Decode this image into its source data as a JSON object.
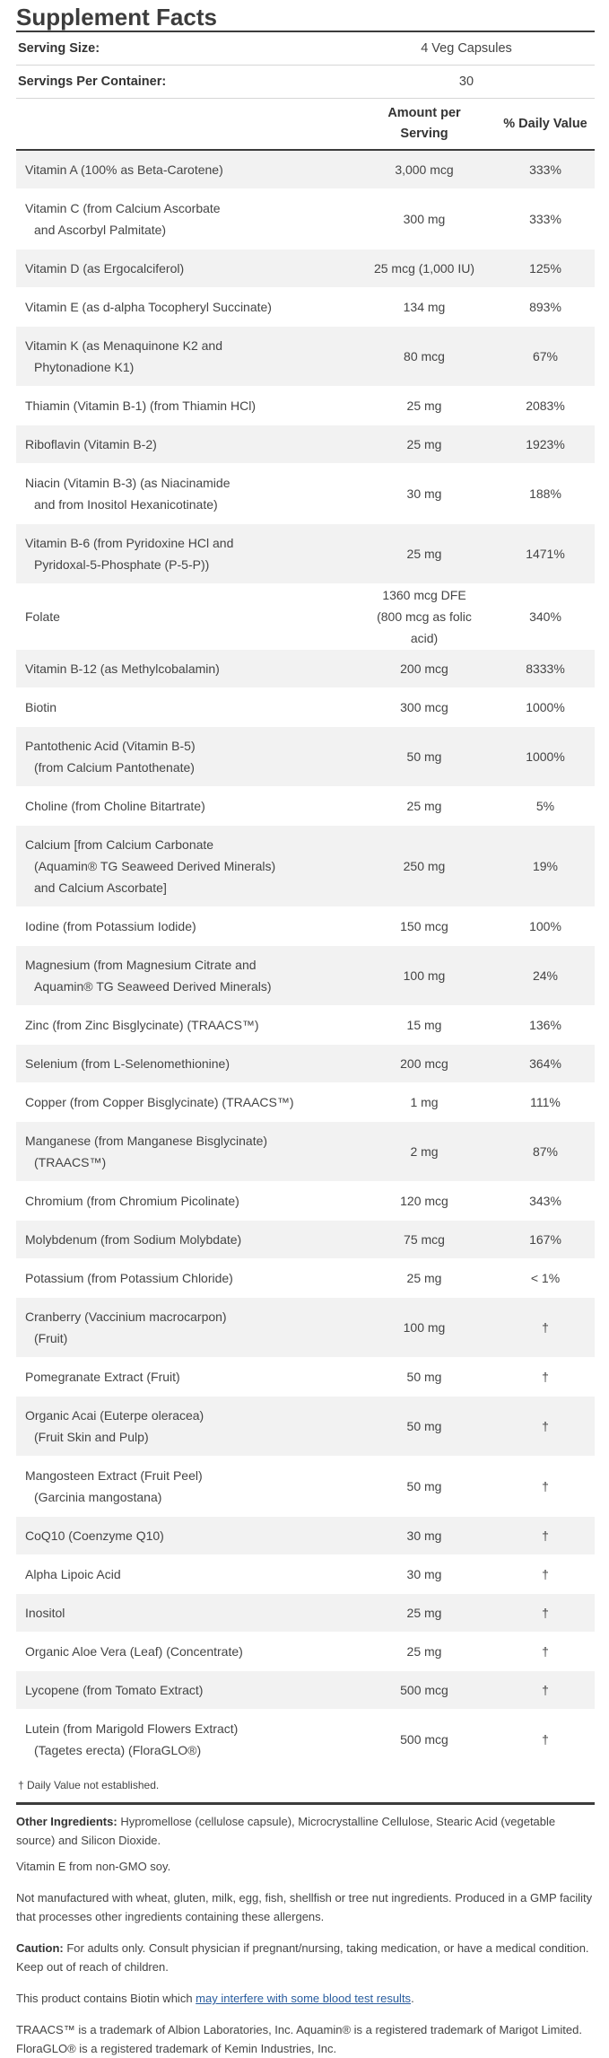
{
  "title": "Supplement Facts",
  "serving": {
    "size_label": "Serving Size:",
    "size_value": "4 Veg Capsules",
    "per_container_label": "Servings Per Container:",
    "per_container_value": "30"
  },
  "header": {
    "amount_line1": "Amount per",
    "amount_line2": "Serving",
    "dv": "% Daily Value"
  },
  "rows": [
    {
      "name": [
        "Vitamin A (100% as Beta-Carotene)"
      ],
      "amount": [
        "3,000 mcg"
      ],
      "dv": "333%"
    },
    {
      "name": [
        "Vitamin C (from Calcium Ascorbate",
        "and Ascorbyl Palmitate)"
      ],
      "amount": [
        "300 mg"
      ],
      "dv": "333%"
    },
    {
      "name": [
        "Vitamin D (as Ergocalciferol)"
      ],
      "amount": [
        "25 mcg (1,000 IU)"
      ],
      "dv": "125%"
    },
    {
      "name": [
        "Vitamin E (as d-alpha Tocopheryl Succinate)"
      ],
      "amount": [
        "134 mg"
      ],
      "dv": "893%"
    },
    {
      "name": [
        "Vitamin K (as Menaquinone K2 and",
        "Phytonadione K1)"
      ],
      "amount": [
        "80 mcg"
      ],
      "dv": "67%"
    },
    {
      "name": [
        "Thiamin (Vitamin B-1) (from Thiamin HCl)"
      ],
      "amount": [
        "25 mg"
      ],
      "dv": "2083%"
    },
    {
      "name": [
        "Riboflavin (Vitamin B-2)"
      ],
      "amount": [
        "25 mg"
      ],
      "dv": "1923%"
    },
    {
      "name": [
        "Niacin (Vitamin B-3) (as Niacinamide",
        "and from Inositol Hexanicotinate)"
      ],
      "amount": [
        "30 mg"
      ],
      "dv": "188%"
    },
    {
      "name": [
        "Vitamin B-6 (from Pyridoxine HCl and",
        "Pyridoxal-5-Phosphate (P-5-P))"
      ],
      "amount": [
        "25 mg"
      ],
      "dv": "1471%"
    },
    {
      "name": [
        "Folate"
      ],
      "amount": [
        "1360 mcg DFE",
        "(800 mcg as folic",
        "acid)"
      ],
      "dv": "340%"
    },
    {
      "name": [
        "Vitamin B-12 (as Methylcobalamin)"
      ],
      "amount": [
        "200 mcg"
      ],
      "dv": "8333%"
    },
    {
      "name": [
        "Biotin"
      ],
      "amount": [
        "300 mcg"
      ],
      "dv": "1000%"
    },
    {
      "name": [
        "Pantothenic Acid (Vitamin B-5)",
        "(from Calcium Pantothenate)"
      ],
      "amount": [
        "50 mg"
      ],
      "dv": "1000%"
    },
    {
      "name": [
        "Choline (from Choline Bitartrate)"
      ],
      "amount": [
        "25 mg"
      ],
      "dv": "5%"
    },
    {
      "name": [
        "Calcium [from Calcium Carbonate",
        "(Aquamin® TG Seaweed Derived Minerals)",
        "and Calcium Ascorbate]"
      ],
      "amount": [
        "250 mg"
      ],
      "dv": "19%"
    },
    {
      "name": [
        "Iodine (from Potassium Iodide)"
      ],
      "amount": [
        "150 mcg"
      ],
      "dv": "100%"
    },
    {
      "name": [
        "Magnesium (from Magnesium Citrate and",
        "Aquamin® TG Seaweed Derived Minerals)"
      ],
      "amount": [
        "100 mg"
      ],
      "dv": "24%"
    },
    {
      "name": [
        "Zinc (from Zinc Bisglycinate) (TRAACS™)"
      ],
      "amount": [
        "15 mg"
      ],
      "dv": "136%"
    },
    {
      "name": [
        "Selenium (from L-Selenomethionine)"
      ],
      "amount": [
        "200 mcg"
      ],
      "dv": "364%"
    },
    {
      "name": [
        "Copper (from Copper Bisglycinate) (TRAACS™)"
      ],
      "amount": [
        "1 mg"
      ],
      "dv": "111%"
    },
    {
      "name": [
        "Manganese (from Manganese Bisglycinate)",
        "(TRAACS™)"
      ],
      "amount": [
        "2 mg"
      ],
      "dv": "87%"
    },
    {
      "name": [
        "Chromium (from Chromium Picolinate)"
      ],
      "amount": [
        "120 mcg"
      ],
      "dv": "343%"
    },
    {
      "name": [
        "Molybdenum (from Sodium Molybdate)"
      ],
      "amount": [
        "75 mcg"
      ],
      "dv": "167%"
    },
    {
      "name": [
        "Potassium (from Potassium Chloride)"
      ],
      "amount": [
        "25 mg"
      ],
      "dv": "< 1%"
    },
    {
      "name": [
        "Cranberry (Vaccinium macrocarpon)",
        "(Fruit)"
      ],
      "amount": [
        "100 mg"
      ],
      "dv": "†"
    },
    {
      "name": [
        "Pomegranate Extract (Fruit)"
      ],
      "amount": [
        "50 mg"
      ],
      "dv": "†"
    },
    {
      "name": [
        "Organic Acai (Euterpe oleracea)",
        "(Fruit Skin and Pulp)"
      ],
      "amount": [
        "50 mg"
      ],
      "dv": "†"
    },
    {
      "name": [
        "Mangosteen Extract (Fruit Peel)",
        "(Garcinia mangostana)"
      ],
      "amount": [
        "50 mg"
      ],
      "dv": "†"
    },
    {
      "name": [
        "CoQ10 (Coenzyme Q10)"
      ],
      "amount": [
        "30 mg"
      ],
      "dv": "†"
    },
    {
      "name": [
        "Alpha Lipoic Acid"
      ],
      "amount": [
        "30 mg"
      ],
      "dv": "†"
    },
    {
      "name": [
        "Inositol"
      ],
      "amount": [
        "25 mg"
      ],
      "dv": "†"
    },
    {
      "name": [
        "Organic Aloe Vera (Leaf) (Concentrate)"
      ],
      "amount": [
        "25 mg"
      ],
      "dv": "†"
    },
    {
      "name": [
        "Lycopene (from Tomato Extract)"
      ],
      "amount": [
        "500 mcg"
      ],
      "dv": "†"
    },
    {
      "name": [
        "Lutein (from Marigold Flowers Extract)",
        "(Tagetes erecta) (FloraGLO®)"
      ],
      "amount": [
        "500 mcg"
      ],
      "dv": "†"
    }
  ],
  "footnote": "† Daily Value not established.",
  "notes": {
    "other_label": "Other Ingredients:",
    "other_text": "Hypromellose (cellulose capsule), Microcrystalline Cellulose, Stearic Acid (vegetable source) and Silicon Dioxide.",
    "vitamin_e": "Vitamin E from non-GMO soy.",
    "allergens": "Not manufactured with wheat, gluten, milk, egg, fish, shellfish or tree nut ingredients. Produced in a GMP facility that processes other ingredients containing these allergens.",
    "caution_label": "Caution:",
    "caution_text": "For adults only. Consult physician if pregnant/nursing, taking medication, or have a medical condition. Keep out of reach of children.",
    "biotin_prefix": "This product contains Biotin which",
    "biotin_link": "may interfere with some blood test results",
    "biotin_suffix": ".",
    "trademark": "TRAACS™ is a trademark of Albion Laboratories, Inc. Aquamin® is a registered trademark of Marigot Limited. FloraGLO® is a registered trademark of Kemin Industries, Inc."
  }
}
